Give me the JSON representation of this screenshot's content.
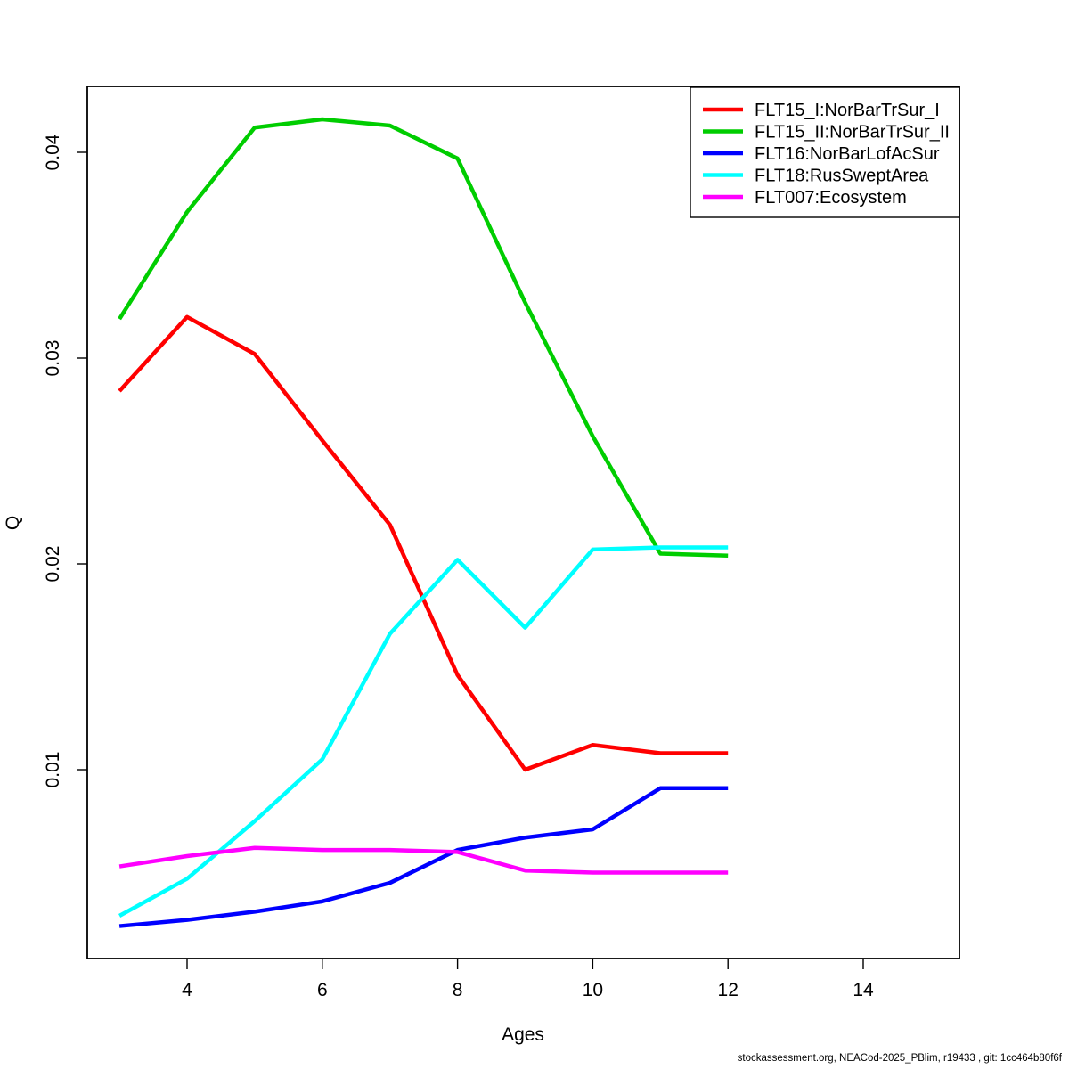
{
  "figure": {
    "footer": "stockassessment.org, NEACod-2025_PBlim, r19433 , git: 1cc464b80f6f"
  },
  "chart_data": {
    "type": "line",
    "title": "",
    "xlabel": "Ages",
    "ylabel": "Q",
    "x": [
      3,
      4,
      5,
      6,
      7,
      8,
      9,
      10,
      11,
      12
    ],
    "x_ticks": [
      4,
      6,
      8,
      10,
      12,
      14
    ],
    "y_ticks": [
      0.01,
      0.02,
      0.03,
      0.04
    ],
    "xlim": [
      2.5,
      15.4
    ],
    "ylim": [
      0.0008,
      0.0432
    ],
    "grid": false,
    "legend_position": "top-right",
    "series": [
      {
        "name": "FLT15_I:NorBarTrSur_I",
        "color": "#FF0000",
        "values": [
          0.0284,
          0.032,
          0.0302,
          0.026,
          0.0219,
          0.0146,
          0.01,
          0.0112,
          0.0108,
          0.0108
        ]
      },
      {
        "name": "FLT15_II:NorBarTrSur_II",
        "color": "#00CD00",
        "values": [
          0.0319,
          0.0371,
          0.0412,
          0.0416,
          0.0413,
          0.0397,
          0.0327,
          0.0262,
          0.0205,
          0.0204
        ]
      },
      {
        "name": "FLT16:NorBarLofAcSur",
        "color": "#0000FF",
        "values": [
          0.0024,
          0.0027,
          0.0031,
          0.0036,
          0.0045,
          0.0061,
          0.0067,
          0.0071,
          0.0091,
          0.0091
        ]
      },
      {
        "name": "FLT18:RusSweptArea",
        "color": "#00FFFF",
        "values": [
          0.0029,
          0.0047,
          0.0075,
          0.0105,
          0.0166,
          0.0202,
          0.0169,
          0.0207,
          0.0208,
          0.0208
        ]
      },
      {
        "name": "FLT007:Ecosystem",
        "color": "#FF00FF",
        "values": [
          0.0053,
          0.0058,
          0.0062,
          0.0061,
          0.0061,
          0.006,
          0.0051,
          0.005,
          0.005,
          0.005
        ]
      }
    ]
  }
}
